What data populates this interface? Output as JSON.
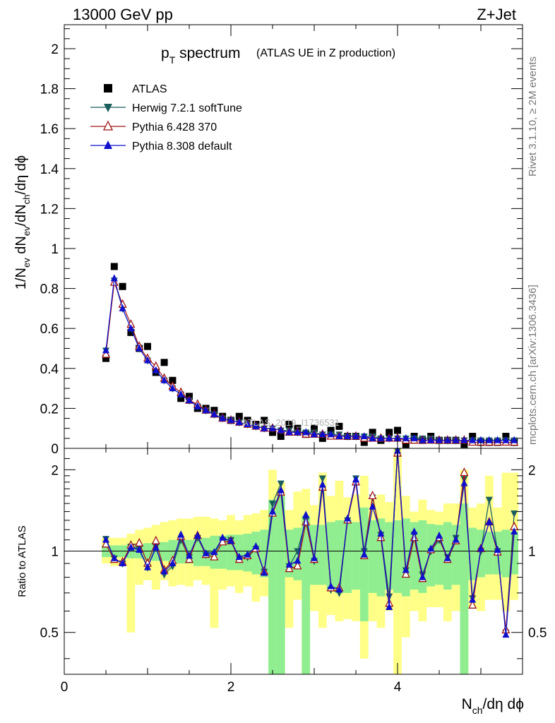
{
  "header": {
    "left": "13000 GeV pp",
    "right": "Z+Jet",
    "side_right": "Rivet 3.1.10, ≥ 2M events",
    "side_right2": "mcplots.cern.ch [arXiv:1306.3436]"
  },
  "watermark": "ATLAS_2019_I1736531",
  "chart_data": [
    {
      "type": "scatter",
      "title_main": "p_T spectrum",
      "title_sub": "(ATLAS UE in Z production)",
      "ylabel": "1/N_ev dN_ev/dN_ch/dη dϕ",
      "xlim": [
        0,
        5.5
      ],
      "ylim": [
        0,
        2.12
      ],
      "y_ticks": [
        0,
        0.2,
        0.4,
        0.6,
        0.8,
        1,
        1.2,
        1.4,
        1.6,
        1.8,
        2
      ],
      "y_tick_labels": [
        "0",
        "0.2",
        "0.4",
        "0.6",
        "0.8",
        "1",
        "1.2",
        "1.4",
        "1.6",
        "1.8",
        "2"
      ],
      "legend_position": "top-left",
      "x": [
        0.5,
        0.6,
        0.7,
        0.8,
        0.9,
        1.0,
        1.1,
        1.2,
        1.3,
        1.4,
        1.5,
        1.6,
        1.7,
        1.8,
        1.9,
        2.0,
        2.1,
        2.2,
        2.3,
        2.4,
        2.5,
        2.6,
        2.7,
        2.8,
        2.9,
        3.0,
        3.1,
        3.2,
        3.3,
        3.4,
        3.5,
        3.6,
        3.7,
        3.8,
        3.9,
        4.0,
        4.1,
        4.2,
        4.3,
        4.4,
        4.5,
        4.6,
        4.7,
        4.8,
        4.9,
        5.0,
        5.1,
        5.2,
        5.3,
        5.4
      ],
      "series": [
        {
          "name": "ATLAS",
          "color": "#000000",
          "marker": "square",
          "values": [
            0.45,
            0.91,
            0.81,
            0.58,
            0.5,
            0.51,
            0.38,
            0.43,
            0.34,
            0.25,
            0.26,
            0.2,
            0.2,
            0.19,
            0.16,
            0.14,
            0.16,
            0.14,
            0.12,
            0.14,
            0.08,
            0.06,
            0.12,
            0.1,
            0.07,
            0.1,
            0.05,
            0.09,
            0.11,
            0.06,
            0.06,
            0.03,
            0.08,
            0.04,
            0.08,
            0.09,
            0.02,
            0.06,
            0.04,
            0.06,
            0.04,
            0.04,
            0.04,
            0.02,
            0.06,
            0.03,
            0.03,
            0.03,
            0.06,
            0.03
          ]
        },
        {
          "name": "Herwig 7.2.1 softTune",
          "color": "#1b5e5e",
          "marker": "triangle-down",
          "values": [
            0.49,
            0.84,
            0.7,
            0.6,
            0.5,
            0.44,
            0.39,
            0.34,
            0.3,
            0.27,
            0.24,
            0.21,
            0.19,
            0.17,
            0.15,
            0.14,
            0.13,
            0.12,
            0.11,
            0.1,
            0.1,
            0.09,
            0.09,
            0.08,
            0.08,
            0.08,
            0.07,
            0.07,
            0.07,
            0.06,
            0.06,
            0.06,
            0.06,
            0.05,
            0.05,
            0.05,
            0.05,
            0.05,
            0.05,
            0.05,
            0.04,
            0.04,
            0.04,
            0.04,
            0.04,
            0.04,
            0.04,
            0.04,
            0.04,
            0.04
          ]
        },
        {
          "name": "Pythia 6.428 370",
          "color": "#a01515",
          "marker": "triangle-open",
          "values": [
            0.47,
            0.83,
            0.72,
            0.62,
            0.51,
            0.45,
            0.41,
            0.35,
            0.31,
            0.28,
            0.24,
            0.22,
            0.19,
            0.17,
            0.15,
            0.14,
            0.13,
            0.12,
            0.11,
            0.1,
            0.1,
            0.09,
            0.08,
            0.08,
            0.07,
            0.07,
            0.07,
            0.06,
            0.06,
            0.06,
            0.06,
            0.05,
            0.05,
            0.05,
            0.05,
            0.05,
            0.04,
            0.04,
            0.04,
            0.04,
            0.04,
            0.04,
            0.04,
            0.04,
            0.03,
            0.03,
            0.03,
            0.03,
            0.03,
            0.03
          ]
        },
        {
          "name": "Pythia 8.308 default",
          "color": "#1010cc",
          "marker": "triangle",
          "values": [
            0.49,
            0.85,
            0.7,
            0.6,
            0.5,
            0.44,
            0.39,
            0.34,
            0.3,
            0.27,
            0.24,
            0.21,
            0.19,
            0.17,
            0.15,
            0.14,
            0.13,
            0.12,
            0.11,
            0.1,
            0.1,
            0.09,
            0.08,
            0.08,
            0.08,
            0.07,
            0.07,
            0.07,
            0.06,
            0.06,
            0.06,
            0.06,
            0.05,
            0.05,
            0.05,
            0.05,
            0.05,
            0.05,
            0.04,
            0.04,
            0.04,
            0.04,
            0.04,
            0.04,
            0.04,
            0.04,
            0.04,
            0.04,
            0.04,
            0.04
          ]
        }
      ]
    },
    {
      "type": "line",
      "ylabel": "Ratio to ATLAS",
      "xlabel": "N_ch/dη dϕ",
      "xlim": [
        0,
        5.5
      ],
      "ylim": [
        0.35,
        2.4
      ],
      "y_scale": "log",
      "x_ticks": [
        0,
        2,
        4
      ],
      "x_tick_labels": [
        "0",
        "2",
        "4"
      ],
      "y_ticks": [
        0.5,
        1,
        2
      ],
      "y_tick_labels": [
        "0.5",
        "1",
        "2"
      ],
      "reference_line": 1,
      "x": [
        0.5,
        0.6,
        0.7,
        0.8,
        0.9,
        1.0,
        1.1,
        1.2,
        1.3,
        1.4,
        1.5,
        1.6,
        1.7,
        1.8,
        1.9,
        2.0,
        2.1,
        2.2,
        2.3,
        2.4,
        2.5,
        2.6,
        2.7,
        2.8,
        2.9,
        3.0,
        3.1,
        3.2,
        3.3,
        3.4,
        3.5,
        3.6,
        3.7,
        3.8,
        3.9,
        4.0,
        4.1,
        4.2,
        4.3,
        4.4,
        4.5,
        4.6,
        4.7,
        4.8,
        4.9,
        5.0,
        5.1,
        5.2,
        5.3,
        5.4
      ],
      "band_stat": {
        "name": "stat",
        "color": "#90ee90",
        "lo": [
          0.95,
          0.95,
          0.95,
          0.94,
          0.94,
          0.93,
          0.92,
          0.92,
          0.9,
          0.9,
          0.9,
          0.88,
          0.88,
          0.86,
          0.86,
          0.85,
          0.85,
          0.84,
          0.82,
          0.8,
          0.35,
          0.35,
          0.8,
          0.78,
          0.35,
          0.75,
          0.75,
          0.72,
          0.7,
          0.7,
          0.72,
          0.55,
          0.7,
          0.68,
          0.72,
          0.7,
          0.68,
          0.72,
          0.7,
          0.74,
          0.75,
          0.72,
          0.75,
          0.35,
          0.78,
          0.8,
          0.82,
          0.82,
          0.8,
          0.82
        ],
        "hi": [
          1.05,
          1.05,
          1.05,
          1.06,
          1.06,
          1.07,
          1.08,
          1.08,
          1.1,
          1.1,
          1.1,
          1.12,
          1.12,
          1.14,
          1.14,
          1.15,
          1.15,
          1.16,
          1.18,
          1.2,
          1.55,
          1.6,
          1.2,
          1.22,
          1.35,
          1.25,
          1.25,
          1.28,
          1.3,
          1.3,
          1.28,
          1.45,
          1.3,
          1.32,
          1.28,
          1.3,
          1.32,
          1.28,
          1.3,
          1.26,
          1.25,
          1.28,
          1.25,
          1.5,
          1.22,
          1.2,
          1.18,
          1.18,
          1.2,
          1.18
        ]
      },
      "band_total": {
        "name": "stat+syst",
        "color": "#ffff88",
        "lo": [
          0.9,
          0.88,
          0.88,
          0.5,
          0.75,
          0.78,
          0.72,
          0.78,
          0.74,
          0.75,
          0.74,
          0.78,
          0.75,
          0.52,
          0.72,
          0.74,
          0.7,
          0.74,
          0.65,
          0.68,
          0.35,
          0.35,
          0.52,
          0.66,
          0.35,
          0.6,
          0.52,
          0.58,
          0.55,
          0.56,
          0.55,
          0.4,
          0.55,
          0.52,
          0.6,
          0.35,
          0.48,
          0.6,
          0.55,
          0.62,
          0.62,
          0.55,
          0.6,
          0.35,
          0.62,
          0.6,
          0.66,
          0.66,
          0.6,
          0.66
        ],
        "hi": [
          1.12,
          1.12,
          1.12,
          1.16,
          1.2,
          1.22,
          1.25,
          1.28,
          1.3,
          1.32,
          1.32,
          1.34,
          1.34,
          1.32,
          1.3,
          1.36,
          1.3,
          1.36,
          1.38,
          1.42,
          2.0,
          1.8,
          1.42,
          1.66,
          1.7,
          1.48,
          1.95,
          1.6,
          1.82,
          1.58,
          1.62,
          1.9,
          1.55,
          1.62,
          1.52,
          2.4,
          1.6,
          1.4,
          1.55,
          1.42,
          1.4,
          1.5,
          1.5,
          2.0,
          1.45,
          1.5,
          1.9,
          1.45,
          1.95,
          1.95
        ]
      },
      "series": [
        {
          "name": "Herwig 7.2.1 softTune",
          "color": "#1b5e5e",
          "marker": "triangle-down",
          "values": [
            1.11,
            0.94,
            0.9,
            1.04,
            1.02,
            0.87,
            1.04,
            0.82,
            0.88,
            1.1,
            0.95,
            1.12,
            0.97,
            0.98,
            1.1,
            1.1,
            0.94,
            0.95,
            1.02,
            0.84,
            1.5,
            1.78,
            0.88,
            1.0,
            1.3,
            0.92,
            1.86,
            0.72,
            0.7,
            1.3,
            1.86,
            1.0,
            1.58,
            1.15,
            0.68,
            2.35,
            0.85,
            1.15,
            0.82,
            1.0,
            1.1,
            0.95,
            1.12,
            1.85,
            0.67,
            1.0,
            1.55,
            1.0,
            0.5,
            1.38
          ]
        },
        {
          "name": "Pythia 6.428 370",
          "color": "#a01515",
          "marker": "triangle-open",
          "values": [
            1.06,
            0.93,
            0.91,
            1.05,
            1.07,
            0.9,
            1.09,
            0.85,
            0.92,
            1.13,
            0.93,
            1.14,
            0.97,
            0.95,
            1.08,
            1.09,
            0.93,
            0.96,
            1.02,
            0.84,
            1.38,
            1.65,
            0.86,
            0.88,
            1.28,
            0.93,
            1.72,
            0.73,
            0.73,
            1.3,
            1.8,
            0.96,
            1.6,
            1.12,
            0.64,
            2.3,
            0.82,
            1.12,
            0.79,
            1.01,
            1.12,
            0.93,
            1.09,
            1.95,
            0.63,
            1.02,
            1.28,
            0.99,
            0.51,
            1.23
          ]
        },
        {
          "name": "Pythia 8.308 default",
          "color": "#1010cc",
          "marker": "triangle",
          "values": [
            1.1,
            0.94,
            0.9,
            1.03,
            1.01,
            0.87,
            1.03,
            0.84,
            0.9,
            1.15,
            0.96,
            1.14,
            0.98,
            0.99,
            1.12,
            1.09,
            0.95,
            0.97,
            1.04,
            0.83,
            1.4,
            1.68,
            0.89,
            0.92,
            1.36,
            0.94,
            1.76,
            0.74,
            0.72,
            1.32,
            1.84,
            0.97,
            1.46,
            1.16,
            0.62,
            2.35,
            0.85,
            1.18,
            0.8,
            1.02,
            1.14,
            0.94,
            1.1,
            1.78,
            0.66,
            1.02,
            1.28,
            1.01,
            0.49,
            1.18
          ]
        }
      ]
    }
  ]
}
